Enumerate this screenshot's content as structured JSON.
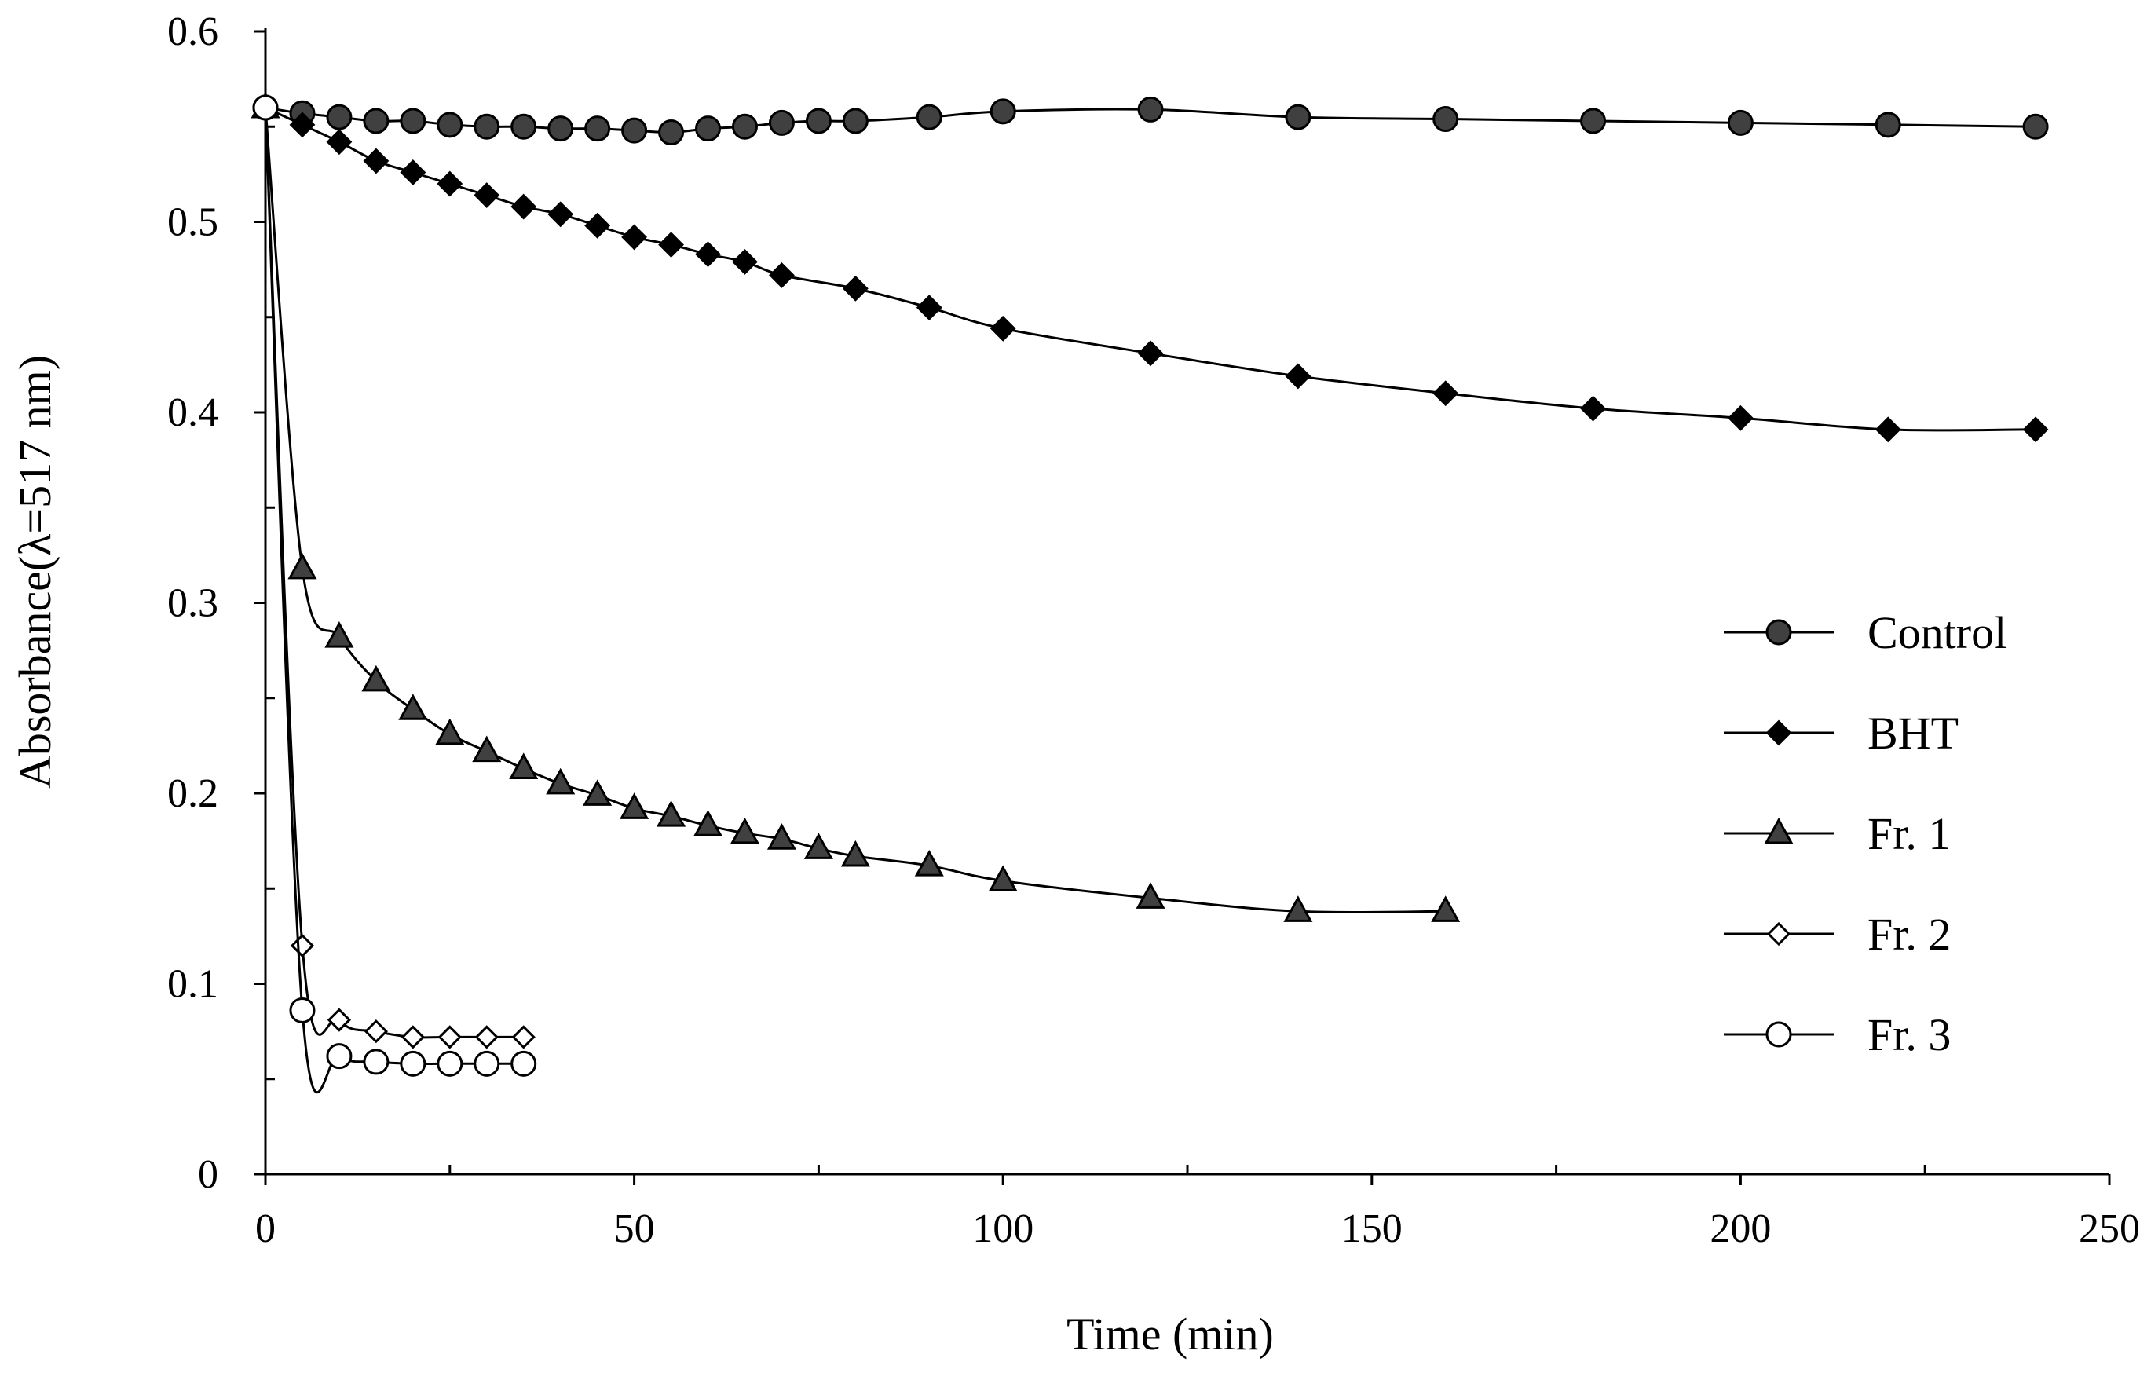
{
  "chart_data": {
    "type": "line",
    "title": "",
    "xlabel": "Time (min)",
    "ylabel": "Absorbance(λ=517 nm)",
    "xlim": [
      0,
      250
    ],
    "ylim": [
      0,
      0.6
    ],
    "xticks": [
      0,
      50,
      100,
      150,
      200,
      250
    ],
    "xtick_labels": [
      "0",
      "50",
      "100",
      "150",
      "200",
      "250"
    ],
    "yticks": [
      0,
      0.1,
      0.2,
      0.3,
      0.4,
      0.5,
      0.6
    ],
    "ytick_labels": [
      "0",
      "0.1",
      "0.2",
      "0.3",
      "0.4",
      "0.5",
      "0.6"
    ],
    "grid": false,
    "legend_position": "right",
    "colors": {
      "filled_marker": "#404040",
      "black": "#000000",
      "open_marker": "#ffffff"
    },
    "series": [
      {
        "name": "Control",
        "marker": "circle-filled",
        "x": [
          0,
          5,
          10,
          15,
          20,
          25,
          30,
          35,
          40,
          45,
          50,
          55,
          60,
          65,
          70,
          75,
          80,
          90,
          100,
          120,
          140,
          160,
          180,
          200,
          220,
          240
        ],
        "y": [
          0.56,
          0.557,
          0.555,
          0.553,
          0.553,
          0.551,
          0.55,
          0.55,
          0.549,
          0.549,
          0.548,
          0.547,
          0.549,
          0.55,
          0.552,
          0.553,
          0.553,
          0.555,
          0.558,
          0.559,
          0.555,
          0.554,
          0.553,
          0.552,
          0.551,
          0.55
        ]
      },
      {
        "name": "BHT",
        "marker": "diamond-filled",
        "x": [
          0,
          5,
          10,
          15,
          20,
          25,
          30,
          35,
          40,
          45,
          50,
          55,
          60,
          65,
          70,
          80,
          90,
          100,
          120,
          140,
          160,
          180,
          200,
          220,
          240
        ],
        "y": [
          0.56,
          0.551,
          0.542,
          0.532,
          0.526,
          0.52,
          0.514,
          0.508,
          0.504,
          0.498,
          0.492,
          0.488,
          0.483,
          0.479,
          0.472,
          0.465,
          0.455,
          0.444,
          0.431,
          0.419,
          0.41,
          0.402,
          0.397,
          0.391,
          0.391
        ]
      },
      {
        "name": "Fr. 1",
        "marker": "triangle-filled",
        "x": [
          0,
          5,
          10,
          15,
          20,
          25,
          30,
          35,
          40,
          45,
          50,
          55,
          60,
          65,
          70,
          75,
          80,
          90,
          100,
          120,
          140,
          160
        ],
        "y": [
          0.56,
          0.318,
          0.282,
          0.259,
          0.244,
          0.231,
          0.222,
          0.213,
          0.205,
          0.199,
          0.192,
          0.188,
          0.183,
          0.179,
          0.176,
          0.171,
          0.167,
          0.162,
          0.154,
          0.145,
          0.138,
          0.138
        ]
      },
      {
        "name": "Fr. 2",
        "marker": "diamond-open",
        "x": [
          0,
          5,
          10,
          15,
          20,
          25,
          30,
          35
        ],
        "y": [
          0.56,
          0.12,
          0.081,
          0.075,
          0.072,
          0.072,
          0.072,
          0.072
        ]
      },
      {
        "name": "Fr. 3",
        "marker": "circle-open",
        "x": [
          0,
          5,
          10,
          15,
          20,
          25,
          30,
          35
        ],
        "y": [
          0.56,
          0.086,
          0.062,
          0.059,
          0.058,
          0.058,
          0.058,
          0.058
        ]
      }
    ]
  }
}
